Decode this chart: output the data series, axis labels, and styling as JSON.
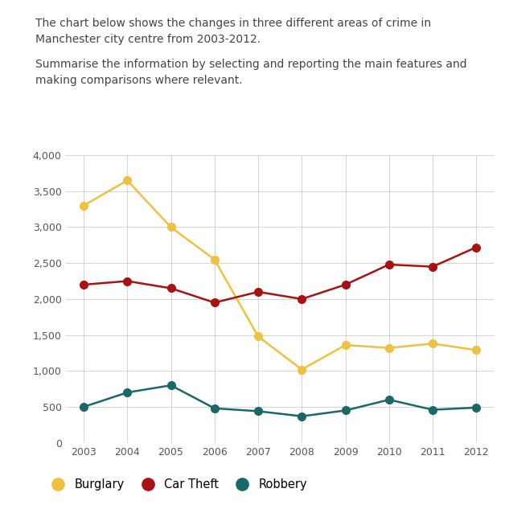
{
  "years": [
    2003,
    2004,
    2005,
    2006,
    2007,
    2008,
    2009,
    2010,
    2011,
    2012
  ],
  "burglary": [
    3300,
    3650,
    3000,
    2550,
    1480,
    1020,
    1360,
    1320,
    1380,
    1290
  ],
  "car_theft": [
    2200,
    2250,
    2150,
    1950,
    2100,
    2000,
    2200,
    2480,
    2450,
    2720
  ],
  "robbery": [
    500,
    700,
    800,
    480,
    440,
    370,
    450,
    600,
    460,
    490
  ],
  "burglary_color": "#f0c040",
  "car_theft_color": "#aa1111",
  "robbery_color": "#1a6868",
  "title_line1": "The chart below shows the changes in three different areas of crime in",
  "title_line2": "Manchester city centre from 2003-2012.",
  "subtitle_line1": "Summarise the information by selecting and reporting the main features and",
  "subtitle_line2": "making comparisons where relevant.",
  "ylim": [
    0,
    4000
  ],
  "yticks": [
    0,
    500,
    1000,
    1500,
    2000,
    2500,
    3000,
    3500,
    4000
  ],
  "ytick_labels": [
    "0",
    "500",
    "1,000",
    "1,500",
    "2,000",
    "2,500",
    "3,000",
    "3,500",
    "4,000"
  ],
  "legend_labels": [
    "Burglary",
    "Car Theft",
    "Robbery"
  ],
  "background_color": "#ffffff",
  "grid_color": "#cccccc",
  "text_color": "#444444",
  "marker_size": 7,
  "line_width": 1.8
}
